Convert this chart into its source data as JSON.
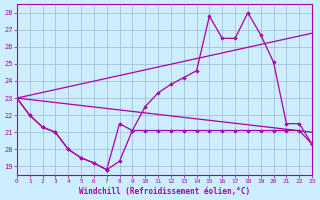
{
  "xlabel": "Windchill (Refroidissement éolien,°C)",
  "xlim": [
    0,
    23
  ],
  "ylim": [
    18.5,
    28.5
  ],
  "yticks": [
    19,
    20,
    21,
    22,
    23,
    24,
    25,
    26,
    27,
    28
  ],
  "xticks": [
    0,
    1,
    2,
    3,
    4,
    5,
    6,
    7,
    8,
    9,
    10,
    11,
    12,
    13,
    14,
    15,
    16,
    17,
    18,
    19,
    20,
    21,
    22,
    23
  ],
  "bg_color": "#cceeff",
  "line_color": "#aa00aa",
  "grid_color": "#99aacc",
  "lower_x": [
    0,
    1,
    2,
    3,
    4,
    5,
    6,
    7,
    8,
    9,
    10,
    11,
    12,
    13,
    14,
    15,
    16,
    17,
    18,
    19,
    20,
    21,
    22,
    23
  ],
  "lower_y": [
    23.0,
    22.0,
    21.3,
    21.0,
    20.0,
    19.5,
    19.2,
    18.8,
    21.5,
    21.1,
    21.1,
    21.1,
    21.1,
    21.1,
    21.1,
    21.1,
    21.1,
    21.1,
    21.1,
    21.1,
    21.1,
    21.1,
    21.1,
    20.3
  ],
  "upper_x": [
    0,
    1,
    2,
    3,
    4,
    5,
    6,
    7,
    8,
    9,
    10,
    11,
    12,
    13,
    14,
    15,
    16,
    17,
    18,
    19,
    20,
    21,
    22,
    23
  ],
  "upper_y": [
    23.0,
    22.0,
    21.3,
    21.0,
    20.0,
    19.5,
    19.2,
    18.8,
    19.3,
    21.1,
    22.5,
    23.3,
    23.8,
    24.2,
    24.6,
    27.8,
    26.5,
    26.5,
    28.0,
    26.7,
    25.1,
    21.5,
    21.5,
    20.3
  ],
  "trend1_x": [
    0,
    23
  ],
  "trend1_y": [
    23.0,
    21.0
  ],
  "trend2_x": [
    0,
    23
  ],
  "trend2_y": [
    23.0,
    26.8
  ]
}
